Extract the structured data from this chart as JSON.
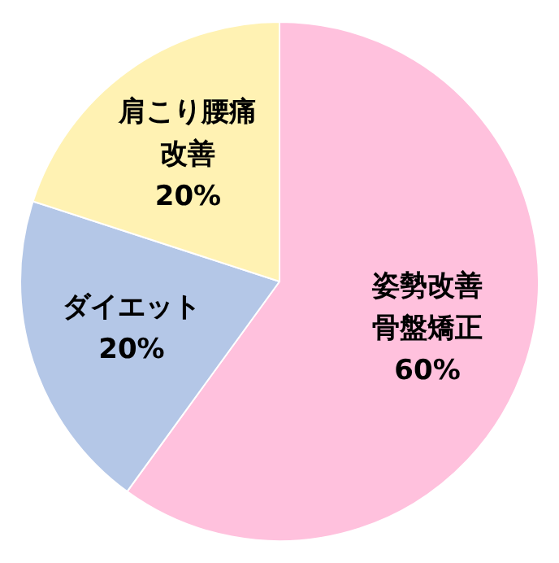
{
  "chart_data": {
    "type": "pie",
    "categories": [
      "姿勢改善骨盤矯正",
      "ダイエット",
      "肩こり腰痛改善"
    ],
    "values": [
      60,
      20,
      20
    ],
    "colors": [
      "#ffc1dd",
      "#b4c7e7",
      "#fff2b3"
    ],
    "value_labels": [
      "60%",
      "20%",
      "20%"
    ],
    "legend": false
  }
}
